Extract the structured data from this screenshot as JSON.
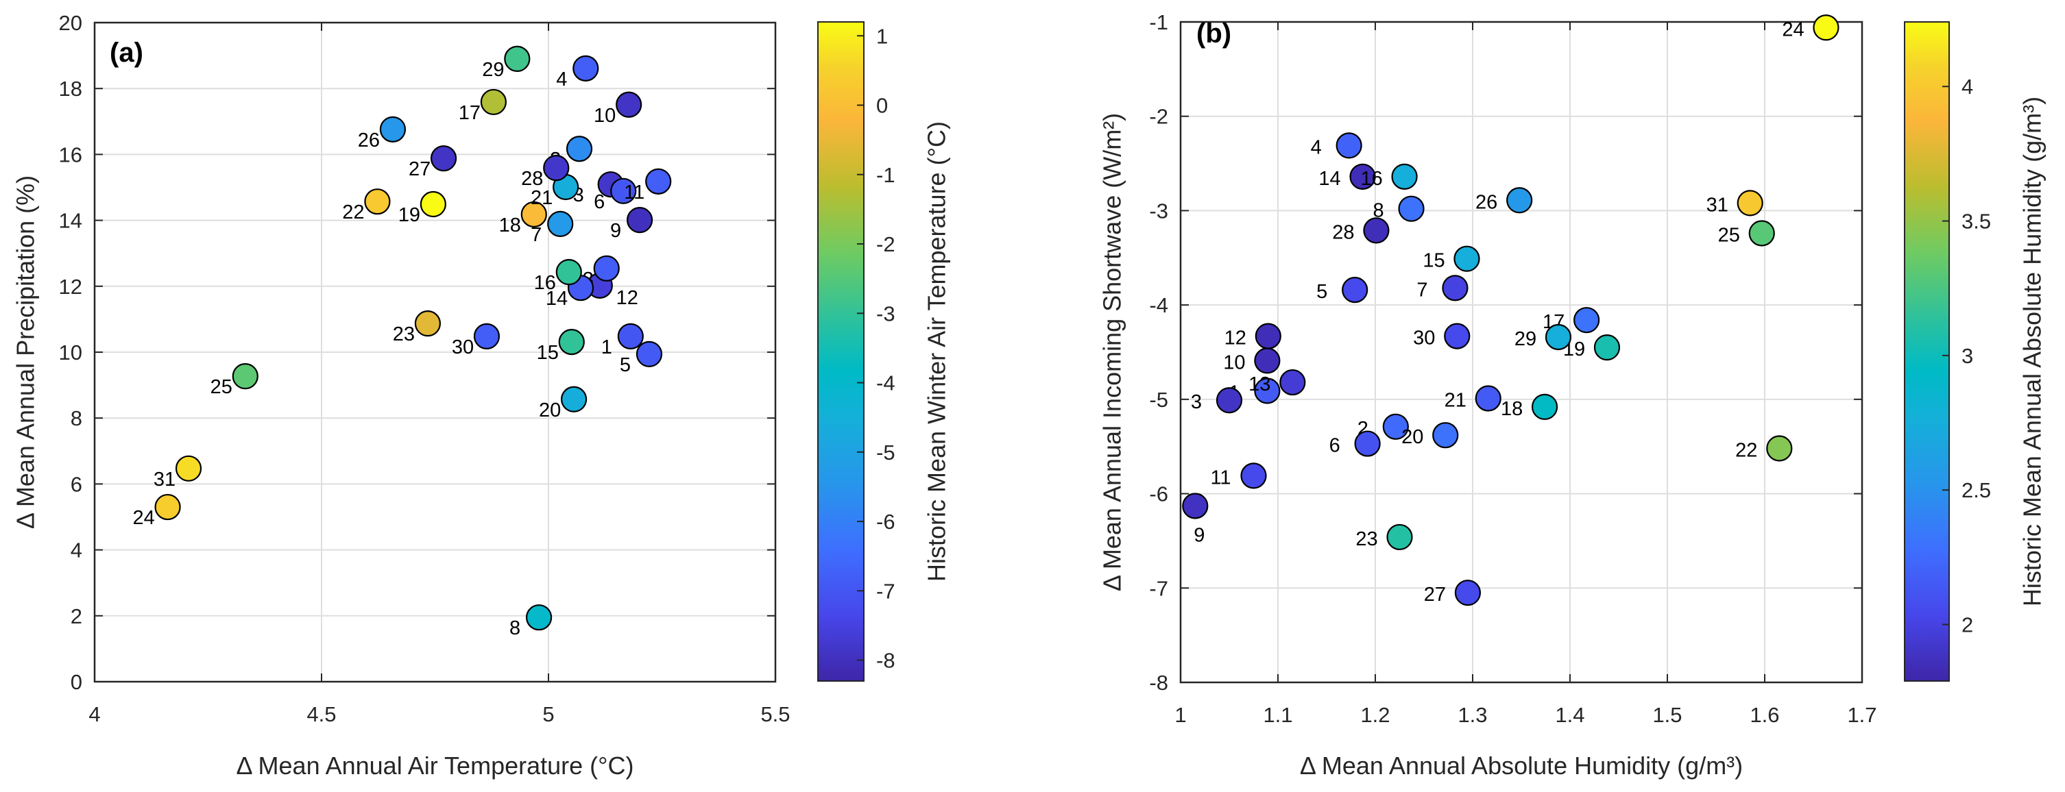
{
  "chart_data": [
    {
      "type": "scatter",
      "panel_tag": "(a)",
      "xlabel": "Δ Mean Annual Air Temperature (°C)",
      "ylabel": "Δ Mean Annual Precipitation (%)",
      "xlim": [
        4,
        5.5
      ],
      "ylim": [
        0,
        20
      ],
      "xticks": [
        "4",
        "4.5",
        "5",
        "5.5"
      ],
      "yticks": [
        "0",
        "2",
        "4",
        "6",
        "8",
        "10",
        "12",
        "14",
        "16",
        "18",
        "20"
      ],
      "grid": true,
      "colorbar": {
        "label": "Historic Mean Winter Air Temperature (°C)",
        "colormap": "parula",
        "range": [
          -8.3,
          1.2
        ],
        "ticks": [
          "1",
          "0",
          "-1",
          "-2",
          "-3",
          "-4",
          "-5",
          "-6",
          "-7",
          "-8"
        ]
      },
      "points": [
        {
          "label": "1",
          "x": 5.181,
          "y": 10.48,
          "c": -7.0
        },
        {
          "label": "2",
          "x": 5.068,
          "y": 16.17,
          "c": -5.7
        },
        {
          "label": "3",
          "x": 5.137,
          "y": 15.09,
          "c": -7.8
        },
        {
          "label": "4",
          "x": 5.082,
          "y": 18.61,
          "c": -6.8
        },
        {
          "label": "5",
          "x": 5.222,
          "y": 9.94,
          "c": -6.9
        },
        {
          "label": "6",
          "x": 5.165,
          "y": 14.89,
          "c": -7.0
        },
        {
          "label": "7",
          "x": 5.026,
          "y": 13.89,
          "c": -5.3
        },
        {
          "label": "8",
          "x": 4.979,
          "y": 1.95,
          "c": -4.0
        },
        {
          "label": "9",
          "x": 5.201,
          "y": 14.01,
          "c": -8.0
        },
        {
          "label": "10",
          "x": 5.177,
          "y": 17.51,
          "c": -7.9
        },
        {
          "label": "11",
          "x": 5.242,
          "y": 15.18,
          "c": -6.8
        },
        {
          "label": "12",
          "x": 5.113,
          "y": 12.02,
          "c": -7.6
        },
        {
          "label": "13",
          "x": 5.128,
          "y": 12.54,
          "c": -6.8
        },
        {
          "label": "14",
          "x": 5.071,
          "y": 11.95,
          "c": -6.9
        },
        {
          "label": "15",
          "x": 5.051,
          "y": 10.31,
          "c": -3.0
        },
        {
          "label": "16",
          "x": 5.045,
          "y": 12.43,
          "c": -3.0
        },
        {
          "label": "17",
          "x": 4.879,
          "y": 17.59,
          "c": -1.3
        },
        {
          "label": "18",
          "x": 4.968,
          "y": 14.18,
          "c": -0.1
        },
        {
          "label": "19",
          "x": 4.746,
          "y": 14.49,
          "c": 1.2
        },
        {
          "label": "20",
          "x": 5.056,
          "y": 8.57,
          "c": -4.6
        },
        {
          "label": "21",
          "x": 5.038,
          "y": 15.01,
          "c": -4.6
        },
        {
          "label": "22",
          "x": 4.623,
          "y": 14.57,
          "c": 0.3
        },
        {
          "label": "23",
          "x": 4.734,
          "y": 10.87,
          "c": -0.6
        },
        {
          "label": "24",
          "x": 4.161,
          "y": 5.3,
          "c": 0.4
        },
        {
          "label": "25",
          "x": 4.332,
          "y": 9.27,
          "c": -2.4
        },
        {
          "label": "26",
          "x": 4.657,
          "y": 16.76,
          "c": -5.4
        },
        {
          "label": "27",
          "x": 4.769,
          "y": 15.88,
          "c": -7.9
        },
        {
          "label": "28",
          "x": 5.017,
          "y": 15.59,
          "c": -7.8
        },
        {
          "label": "29",
          "x": 4.931,
          "y": 18.9,
          "c": -2.8
        },
        {
          "label": "30",
          "x": 4.864,
          "y": 10.48,
          "c": -6.8
        },
        {
          "label": "31",
          "x": 4.207,
          "y": 6.47,
          "c": 0.7
        }
      ]
    },
    {
      "type": "scatter",
      "panel_tag": "(b)",
      "xlabel": "Δ Mean Annual Absolute Humidity (g/m³)",
      "ylabel": "Δ Mean Annual Incoming Shortwave (W/m²)",
      "xlim": [
        1,
        1.7
      ],
      "ylim": [
        -8,
        -1
      ],
      "xticks": [
        "1",
        "1.1",
        "1.2",
        "1.3",
        "1.4",
        "1.5",
        "1.6",
        "1.7"
      ],
      "yticks": [
        "-8",
        "-7",
        "-6",
        "-5",
        "-4",
        "-3",
        "-2",
        "-1"
      ],
      "grid": true,
      "colorbar": {
        "label": "Historic Mean Annual Absolute Humidity (g/m³)",
        "colormap": "parula",
        "range": [
          1.79,
          4.24
        ],
        "ticks": [
          "4",
          "3.5",
          "3",
          "2.5",
          "2"
        ]
      },
      "points": [
        {
          "label": "1",
          "x": 1.089,
          "y": -4.91,
          "c": 2.15
        },
        {
          "label": "2",
          "x": 1.221,
          "y": -5.29,
          "c": 2.25
        },
        {
          "label": "3",
          "x": 1.05,
          "y": -5.01,
          "c": 1.9
        },
        {
          "label": "4",
          "x": 1.173,
          "y": -2.31,
          "c": 2.2
        },
        {
          "label": "5",
          "x": 1.179,
          "y": -3.84,
          "c": 2.05
        },
        {
          "label": "6",
          "x": 1.192,
          "y": -5.47,
          "c": 2.1
        },
        {
          "label": "7",
          "x": 1.282,
          "y": -3.82,
          "c": 2.0
        },
        {
          "label": "8",
          "x": 1.237,
          "y": -2.98,
          "c": 2.3
        },
        {
          "label": "9",
          "x": 1.015,
          "y": -6.13,
          "c": 1.88
        },
        {
          "label": "10",
          "x": 1.089,
          "y": -4.59,
          "c": 1.85
        },
        {
          "label": "11",
          "x": 1.075,
          "y": -5.81,
          "c": 2.05
        },
        {
          "label": "12",
          "x": 1.09,
          "y": -4.33,
          "c": 1.85
        },
        {
          "label": "13",
          "x": 1.115,
          "y": -4.82,
          "c": 1.95
        },
        {
          "label": "14",
          "x": 1.187,
          "y": -2.64,
          "c": 1.85
        },
        {
          "label": "15",
          "x": 1.294,
          "y": -3.51,
          "c": 2.75
        },
        {
          "label": "16",
          "x": 1.23,
          "y": -2.64,
          "c": 2.75
        },
        {
          "label": "17",
          "x": 1.417,
          "y": -4.16,
          "c": 2.3
        },
        {
          "label": "18",
          "x": 1.374,
          "y": -5.08,
          "c": 2.95
        },
        {
          "label": "19",
          "x": 1.438,
          "y": -4.45,
          "c": 3.05
        },
        {
          "label": "20",
          "x": 1.272,
          "y": -5.38,
          "c": 2.3
        },
        {
          "label": "21",
          "x": 1.316,
          "y": -4.99,
          "c": 2.15
        },
        {
          "label": "22",
          "x": 1.615,
          "y": -5.52,
          "c": 3.45
        },
        {
          "label": "23",
          "x": 1.225,
          "y": -6.46,
          "c": 3.1
        },
        {
          "label": "24",
          "x": 1.663,
          "y": -1.06,
          "c": 4.24
        },
        {
          "label": "25",
          "x": 1.597,
          "y": -3.24,
          "c": 3.3
        },
        {
          "label": "26",
          "x": 1.348,
          "y": -2.89,
          "c": 2.55
        },
        {
          "label": "27",
          "x": 1.295,
          "y": -7.05,
          "c": 2.05
        },
        {
          "label": "28",
          "x": 1.201,
          "y": -3.21,
          "c": 1.85
        },
        {
          "label": "29",
          "x": 1.388,
          "y": -4.34,
          "c": 2.75
        },
        {
          "label": "30",
          "x": 1.284,
          "y": -4.33,
          "c": 2.05
        },
        {
          "label": "31",
          "x": 1.585,
          "y": -2.92,
          "c": 4.0
        }
      ]
    }
  ]
}
